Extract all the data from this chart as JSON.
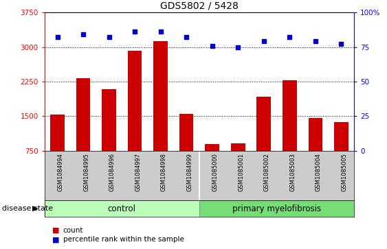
{
  "title": "GDS5802 / 5428",
  "samples": [
    "GSM1084994",
    "GSM1084995",
    "GSM1084996",
    "GSM1084997",
    "GSM1084998",
    "GSM1084999",
    "GSM1085000",
    "GSM1085001",
    "GSM1085002",
    "GSM1085003",
    "GSM1085004",
    "GSM1085005"
  ],
  "counts": [
    1530,
    2320,
    2080,
    2920,
    3130,
    1550,
    890,
    910,
    1920,
    2280,
    1460,
    1370
  ],
  "percentiles": [
    82,
    84,
    82,
    86,
    86,
    82,
    76,
    75,
    79,
    82,
    79,
    77
  ],
  "ylim_left": [
    750,
    3750
  ],
  "ylim_right": [
    0,
    100
  ],
  "yticks_left": [
    750,
    1500,
    2250,
    3000,
    3750
  ],
  "yticks_right": [
    0,
    25,
    50,
    75,
    100
  ],
  "bar_color": "#cc0000",
  "dot_color": "#0000cc",
  "grid_values": [
    1500,
    2250,
    3000
  ],
  "control_count": 6,
  "primary_count": 6,
  "control_label": "control",
  "primary_label": "primary myelofibrosis",
  "disease_state_label": "disease state",
  "legend_count_label": "count",
  "legend_percentile_label": "percentile rank within the sample",
  "control_color": "#bbffbb",
  "primary_color": "#77dd77",
  "xlabel_bg": "#cccccc",
  "bar_width": 0.55
}
